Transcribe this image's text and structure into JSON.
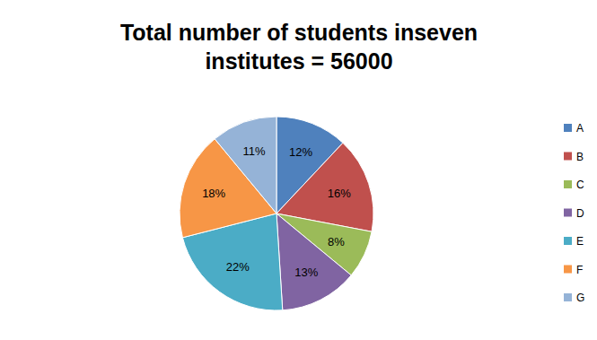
{
  "chart_data": {
    "type": "pie",
    "title": "Total number of students inseven institutes = 56000",
    "categories": [
      "A",
      "B",
      "C",
      "D",
      "E",
      "F",
      "G"
    ],
    "values": [
      12,
      16,
      8,
      13,
      22,
      18,
      11
    ],
    "value_labels": [
      "12%",
      "16%",
      "8%",
      "13%",
      "22%",
      "18%",
      "11%"
    ],
    "colors": [
      "#4f81bd",
      "#c0504d",
      "#9bbb59",
      "#8064a2",
      "#4bacc6",
      "#f79646",
      "#95b3d7"
    ],
    "data_labels": true,
    "legend": "right"
  }
}
